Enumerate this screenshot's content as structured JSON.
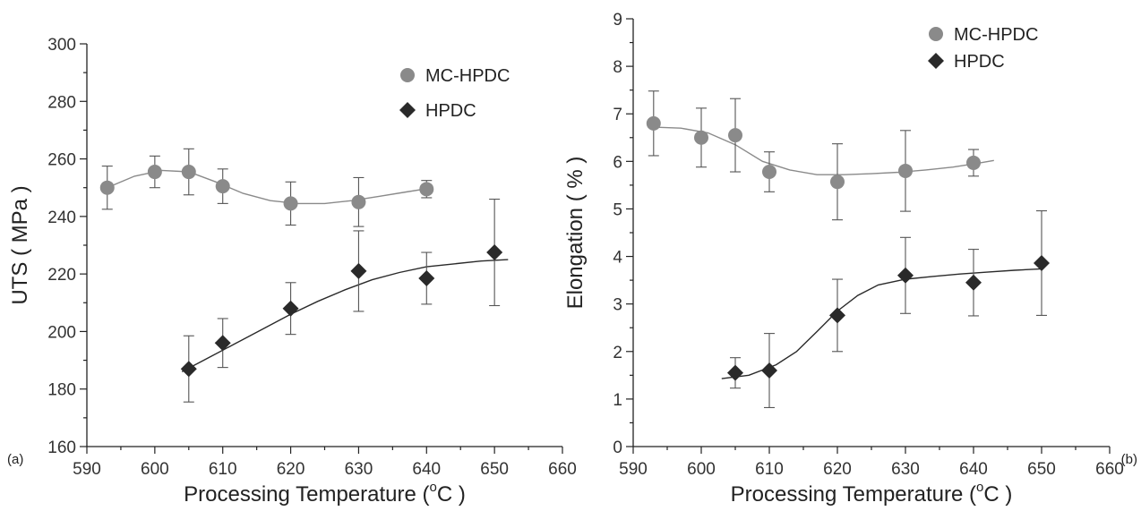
{
  "chart_data": [
    {
      "type": "scatter",
      "panel_label": "(a)",
      "xlabel": "Processing Temperature (°C)",
      "xlabel_parts": {
        "before": "Processing Temperature (",
        "sup": "o",
        "after": "C )"
      },
      "ylabel": "UTS ( MPa )",
      "xlim": [
        590,
        660
      ],
      "ylim": [
        160,
        300
      ],
      "xticks": [
        590,
        600,
        610,
        620,
        630,
        640,
        650,
        660
      ],
      "yticks": [
        160,
        180,
        200,
        220,
        240,
        260,
        280,
        300
      ],
      "legend_position": "top-right",
      "grid": false,
      "series": [
        {
          "name": "MC-HPDC",
          "marker": "circle",
          "color": "#8a8a8a",
          "x": [
            593,
            600,
            605,
            610,
            620,
            630,
            640
          ],
          "y": [
            250,
            255.5,
            255.5,
            250.5,
            244.5,
            245,
            249.5
          ],
          "err": [
            7.5,
            5.5,
            8,
            6,
            7.5,
            8.5,
            3
          ],
          "fit_x": [
            593,
            597,
            601,
            605,
            609,
            613,
            617,
            621,
            625,
            629,
            633,
            637,
            641
          ],
          "fit_y": [
            250,
            254,
            256,
            255.5,
            252,
            248,
            245.5,
            244.5,
            244.5,
            245.5,
            247,
            248.5,
            250
          ]
        },
        {
          "name": "HPDC",
          "marker": "diamond",
          "color": "#2a2a2a",
          "x": [
            605,
            610,
            620,
            630,
            640,
            650
          ],
          "y": [
            187,
            196,
            208,
            221,
            218.5,
            227.5
          ],
          "err": [
            11.5,
            8.5,
            9,
            14,
            9,
            18.5
          ],
          "fit_x": [
            604,
            608,
            612,
            616,
            620,
            624,
            628,
            632,
            636,
            640,
            644,
            648,
            652
          ],
          "fit_y": [
            186,
            191,
            196,
            201,
            206,
            210.5,
            214.5,
            218,
            220.5,
            222.5,
            223.5,
            224.5,
            225
          ]
        }
      ]
    },
    {
      "type": "scatter",
      "panel_label": "(b)",
      "xlabel": "Processing Temperature (°C)",
      "xlabel_parts": {
        "before": "Processing Temperature (",
        "sup": "o",
        "after": "C )"
      },
      "ylabel": "Elongation ( % )",
      "xlim": [
        590,
        660
      ],
      "ylim": [
        0,
        9
      ],
      "xticks": [
        590,
        600,
        610,
        620,
        630,
        640,
        650,
        660
      ],
      "yticks": [
        0,
        1,
        2,
        3,
        4,
        5,
        6,
        7,
        8,
        9
      ],
      "legend_position": "top-right",
      "grid": false,
      "series": [
        {
          "name": "MC-HPDC",
          "marker": "circle",
          "color": "#8a8a8a",
          "x": [
            593,
            600,
            605,
            610,
            620,
            630,
            640
          ],
          "y": [
            6.8,
            6.5,
            6.55,
            5.78,
            5.57,
            5.8,
            5.97
          ],
          "err": [
            0.68,
            0.62,
            0.77,
            0.42,
            0.8,
            0.85,
            0.28
          ],
          "fit_x": [
            593,
            597,
            601,
            605,
            609,
            613,
            617,
            621,
            625,
            629,
            633,
            637,
            641,
            643
          ],
          "fit_y": [
            6.72,
            6.7,
            6.6,
            6.35,
            6.0,
            5.82,
            5.72,
            5.72,
            5.74,
            5.77,
            5.82,
            5.88,
            5.97,
            6.02
          ]
        },
        {
          "name": "HPDC",
          "marker": "diamond",
          "color": "#2a2a2a",
          "x": [
            605,
            610,
            620,
            630,
            640,
            650
          ],
          "y": [
            1.55,
            1.6,
            2.76,
            3.6,
            3.45,
            3.86
          ],
          "err": [
            0.32,
            0.78,
            0.76,
            0.8,
            0.7,
            1.1
          ],
          "fit_x": [
            603,
            607,
            611,
            614,
            617,
            620,
            623,
            626,
            630,
            634,
            638,
            642,
            646,
            650
          ],
          "fit_y": [
            1.43,
            1.5,
            1.72,
            2.0,
            2.42,
            2.85,
            3.18,
            3.4,
            3.52,
            3.58,
            3.63,
            3.67,
            3.71,
            3.74
          ]
        }
      ]
    }
  ]
}
